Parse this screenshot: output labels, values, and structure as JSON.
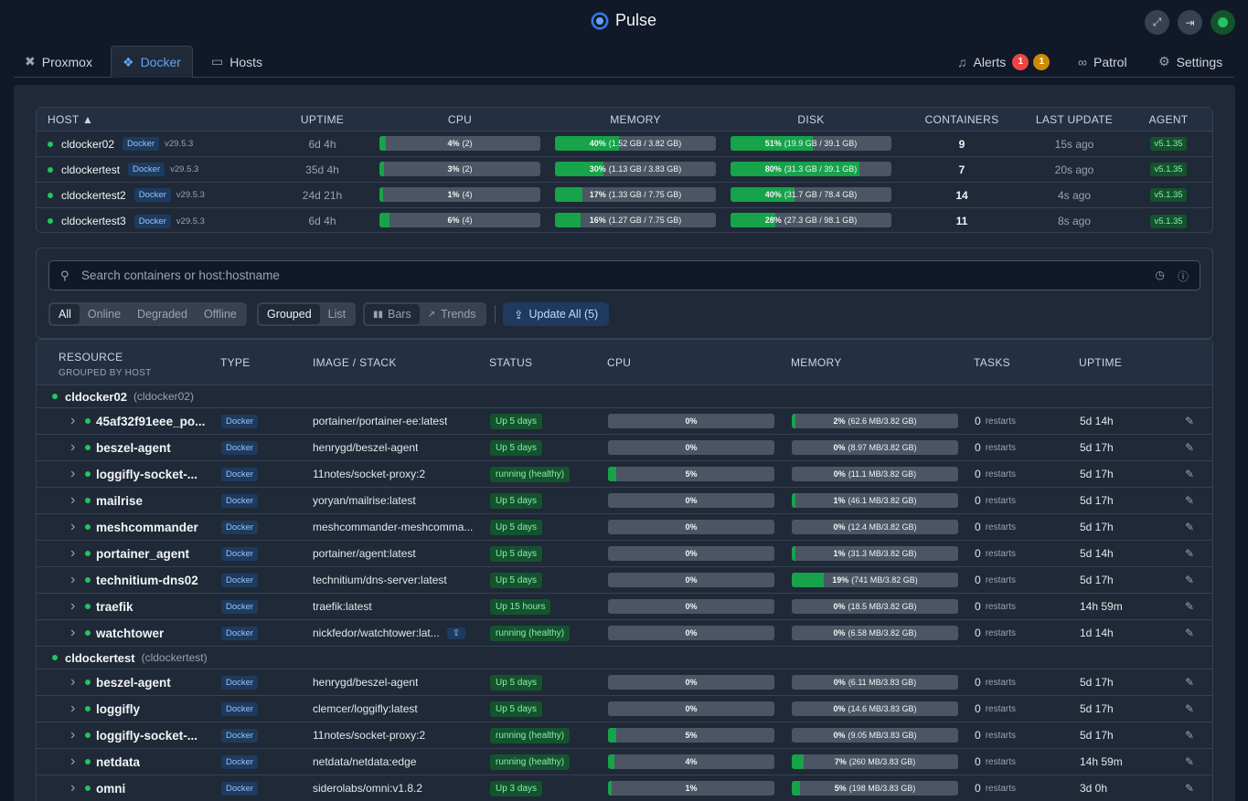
{
  "app": {
    "title": "Pulse"
  },
  "nav": {
    "tabs": [
      {
        "label": "Proxmox"
      },
      {
        "label": "Docker"
      },
      {
        "label": "Hosts"
      }
    ],
    "alerts_label": "Alerts",
    "alerts_red": "1",
    "alerts_yellow": "1",
    "patrol_label": "Patrol",
    "settings_label": "Settings"
  },
  "hosts_table": {
    "headers": {
      "host": "HOST ▲",
      "uptime": "UPTIME",
      "cpu": "CPU",
      "memory": "MEMORY",
      "disk": "DISK",
      "containers": "CONTAINERS",
      "last_update": "LAST UPDATE",
      "agent": "AGENT"
    },
    "rows": [
      {
        "name": "cldocker02",
        "tag": "Docker",
        "version": "v29.5.3",
        "uptime": "6d 4h",
        "cpu_pct": "4%",
        "cpu_detail": "(2)",
        "cpu_val": 4,
        "mem_pct": "40%",
        "mem_detail": "(1.52 GB / 3.82 GB)",
        "mem_val": 40,
        "disk_pct": "51%",
        "disk_detail": "(19.9 GB / 39.1 GB)",
        "disk_val": 51,
        "containers": "9",
        "last_update": "15s ago",
        "agent": "v5.1.35"
      },
      {
        "name": "cldockertest",
        "tag": "Docker",
        "version": "v29.5.3",
        "uptime": "35d 4h",
        "cpu_pct": "3%",
        "cpu_detail": "(2)",
        "cpu_val": 3,
        "mem_pct": "30%",
        "mem_detail": "(1.13 GB / 3.83 GB)",
        "mem_val": 30,
        "disk_pct": "80%",
        "disk_detail": "(31.3 GB / 39.1 GB)",
        "disk_val": 80,
        "containers": "7",
        "last_update": "20s ago",
        "agent": "v5.1.35"
      },
      {
        "name": "cldockertest2",
        "tag": "Docker",
        "version": "v29.5.3",
        "uptime": "24d 21h",
        "cpu_pct": "1%",
        "cpu_detail": "(4)",
        "cpu_val": 1,
        "mem_pct": "17%",
        "mem_detail": "(1.33 GB / 7.75 GB)",
        "mem_val": 17,
        "disk_pct": "40%",
        "disk_detail": "(31.7 GB / 78.4 GB)",
        "disk_val": 40,
        "containers": "14",
        "last_update": "4s ago",
        "agent": "v5.1.35"
      },
      {
        "name": "cldockertest3",
        "tag": "Docker",
        "version": "v29.5.3",
        "uptime": "6d 4h",
        "cpu_pct": "6%",
        "cpu_detail": "(4)",
        "cpu_val": 6,
        "mem_pct": "16%",
        "mem_detail": "(1.27 GB / 7.75 GB)",
        "mem_val": 16,
        "disk_pct": "28%",
        "disk_detail": "(27.3 GB / 98.1 GB)",
        "disk_val": 28,
        "containers": "11",
        "last_update": "8s ago",
        "agent": "v5.1.35"
      }
    ]
  },
  "filters": {
    "search_placeholder": "Search containers or host:hostname",
    "status_options": [
      "All",
      "Online",
      "Degraded",
      "Offline"
    ],
    "view_options": [
      "Grouped",
      "List"
    ],
    "chart_options": [
      "Bars",
      "Trends"
    ],
    "update_all": "Update All (5)"
  },
  "containers_table": {
    "headers": {
      "resource": "RESOURCE",
      "resource_sub": "GROUPED BY HOST",
      "type": "TYPE",
      "image": "IMAGE / STACK",
      "status": "STATUS",
      "cpu": "CPU",
      "memory": "MEMORY",
      "tasks": "TASKS",
      "uptime": "UPTIME"
    },
    "restarts_label": "restarts",
    "groups": [
      {
        "name": "cldocker02",
        "host": "(cldocker02)",
        "containers": [
          {
            "name": "45af32f91eee_po...",
            "type": "Docker",
            "image": "portainer/portainer-ee:latest",
            "status": "Up 5 days",
            "cpu": "0%",
            "cpu_val": 0,
            "mem_pct": "2%",
            "mem_detail": "(62.6 MB/3.82 GB)",
            "mem_val": 2,
            "tasks": "0",
            "uptime": "5d 14h"
          },
          {
            "name": "beszel-agent",
            "type": "Docker",
            "image": "henrygd/beszel-agent",
            "status": "Up 5 days",
            "cpu": "0%",
            "cpu_val": 0,
            "mem_pct": "0%",
            "mem_detail": "(8.97 MB/3.82 GB)",
            "mem_val": 0,
            "tasks": "0",
            "uptime": "5d 17h"
          },
          {
            "name": "loggifly-socket-...",
            "type": "Docker",
            "image": "11notes/socket-proxy:2",
            "status": "running (healthy)",
            "cpu": "5%",
            "cpu_val": 5,
            "mem_pct": "0%",
            "mem_detail": "(11.1 MB/3.82 GB)",
            "mem_val": 0,
            "tasks": "0",
            "uptime": "5d 17h"
          },
          {
            "name": "mailrise",
            "type": "Docker",
            "image": "yoryan/mailrise:latest",
            "status": "Up 5 days",
            "cpu": "0%",
            "cpu_val": 0,
            "mem_pct": "1%",
            "mem_detail": "(46.1 MB/3.82 GB)",
            "mem_val": 1,
            "tasks": "0",
            "uptime": "5d 17h"
          },
          {
            "name": "meshcommander",
            "type": "Docker",
            "image": "meshcommander-meshcomma...",
            "status": "Up 5 days",
            "cpu": "0%",
            "cpu_val": 0,
            "mem_pct": "0%",
            "mem_detail": "(12.4 MB/3.82 GB)",
            "mem_val": 0,
            "tasks": "0",
            "uptime": "5d 17h"
          },
          {
            "name": "portainer_agent",
            "type": "Docker",
            "image": "portainer/agent:latest",
            "status": "Up 5 days",
            "cpu": "0%",
            "cpu_val": 0,
            "mem_pct": "1%",
            "mem_detail": "(31.3 MB/3.82 GB)",
            "mem_val": 1,
            "tasks": "0",
            "uptime": "5d 14h"
          },
          {
            "name": "technitium-dns02",
            "type": "Docker",
            "image": "technitium/dns-server:latest",
            "status": "Up 5 days",
            "cpu": "0%",
            "cpu_val": 0,
            "mem_pct": "19%",
            "mem_detail": "(741 MB/3.82 GB)",
            "mem_val": 19,
            "tasks": "0",
            "uptime": "5d 17h"
          },
          {
            "name": "traefik",
            "type": "Docker",
            "image": "traefik:latest",
            "status": "Up 15 hours",
            "cpu": "0%",
            "cpu_val": 0,
            "mem_pct": "0%",
            "mem_detail": "(18.5 MB/3.82 GB)",
            "mem_val": 0,
            "tasks": "0",
            "uptime": "14h 59m"
          },
          {
            "name": "watchtower",
            "type": "Docker",
            "image": "nickfedor/watchtower:lat...",
            "update": true,
            "status": "running (healthy)",
            "cpu": "0%",
            "cpu_val": 0,
            "mem_pct": "0%",
            "mem_detail": "(6.58 MB/3.82 GB)",
            "mem_val": 0,
            "tasks": "0",
            "uptime": "1d 14h"
          }
        ]
      },
      {
        "name": "cldockertest",
        "host": "(cldockertest)",
        "containers": [
          {
            "name": "beszel-agent",
            "type": "Docker",
            "image": "henrygd/beszel-agent",
            "status": "Up 5 days",
            "cpu": "0%",
            "cpu_val": 0,
            "mem_pct": "0%",
            "mem_detail": "(6.11 MB/3.83 GB)",
            "mem_val": 0,
            "tasks": "0",
            "uptime": "5d 17h"
          },
          {
            "name": "loggifly",
            "type": "Docker",
            "image": "clemcer/loggifly:latest",
            "status": "Up 5 days",
            "cpu": "0%",
            "cpu_val": 0,
            "mem_pct": "0%",
            "mem_detail": "(14.6 MB/3.83 GB)",
            "mem_val": 0,
            "tasks": "0",
            "uptime": "5d 17h"
          },
          {
            "name": "loggifly-socket-...",
            "type": "Docker",
            "image": "11notes/socket-proxy:2",
            "status": "running (healthy)",
            "cpu": "5%",
            "cpu_val": 5,
            "mem_pct": "0%",
            "mem_detail": "(9.05 MB/3.83 GB)",
            "mem_val": 0,
            "tasks": "0",
            "uptime": "5d 17h"
          },
          {
            "name": "netdata",
            "type": "Docker",
            "image": "netdata/netdata:edge",
            "status": "running (healthy)",
            "cpu": "4%",
            "cpu_val": 4,
            "mem_pct": "7%",
            "mem_detail": "(260 MB/3.83 GB)",
            "mem_val": 7,
            "tasks": "0",
            "uptime": "14h 59m"
          },
          {
            "name": "omni",
            "type": "Docker",
            "image": "siderolabs/omni:v1.8.2",
            "status": "Up 3 days",
            "cpu": "1%",
            "cpu_val": 1,
            "mem_pct": "5%",
            "mem_detail": "(198 MB/3.83 GB)",
            "mem_val": 5,
            "tasks": "0",
            "uptime": "3d 0h"
          }
        ]
      }
    ]
  }
}
